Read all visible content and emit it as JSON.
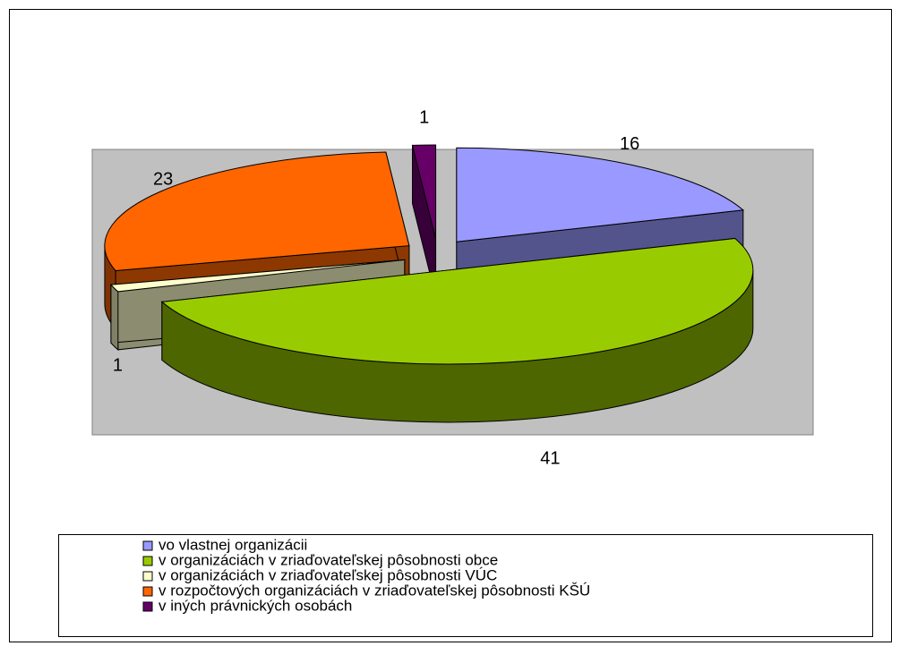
{
  "chart_data": {
    "type": "pie",
    "categories": [
      "vo vlastnej organizácii",
      "v organizáciách v zriaďovateľskej pôsobnosti obce",
      "v organizáciách v zriaďovateľskej pôsobnosti VÚC",
      "v rozpočtových organizáciách v zriaďovateľskej pôsobnosti KŠÚ",
      "v iných právnických osobách"
    ],
    "values": [
      16,
      41,
      1,
      23,
      1
    ],
    "colors": [
      "#9999ff",
      "#99cc00",
      "#ffffcc",
      "#ff6600",
      "#660066"
    ]
  }
}
